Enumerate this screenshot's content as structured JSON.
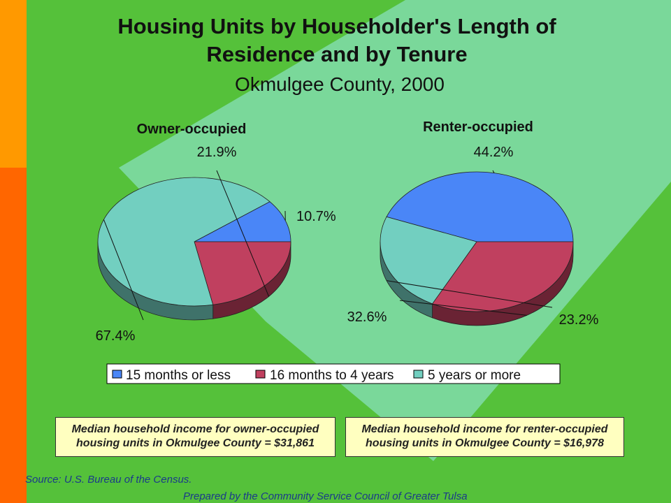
{
  "colors": {
    "background": "#55c13a",
    "diamond": "#7ad89a",
    "bar_top": "#ff9900",
    "bar_bottom": "#ff6600",
    "series_15_months_or_less": "#4a86f7",
    "series_16_months_to_4_years": "#c0405f",
    "series_5_years_or_more": "#72cfc0"
  },
  "chart_data": {
    "type": "pie",
    "title": "Housing Units by Householder's Length of Residence and by Tenure",
    "subtitle": "Okmulgee County, 2000",
    "legend": {
      "placement": "bottom-center",
      "entries": [
        "15 months or less",
        "16 months to 4 years",
        "5 years or more"
      ]
    },
    "charts": [
      {
        "name": "Owner-occupied",
        "slices": [
          {
            "label": "15 months or less",
            "value": 10.7,
            "display": "10.7%"
          },
          {
            "label": "16 months to 4 years",
            "value": 21.9,
            "display": "21.9%"
          },
          {
            "label": "5 years or more",
            "value": 67.4,
            "display": "67.4%"
          }
        ]
      },
      {
        "name": "Renter-occupied",
        "slices": [
          {
            "label": "15 months or less",
            "value": 44.2,
            "display": "44.2%"
          },
          {
            "label": "16 months to 4 years",
            "value": 32.6,
            "display": "32.6%"
          },
          {
            "label": "5 years or more",
            "value": 23.2,
            "display": "23.2%"
          }
        ]
      }
    ]
  },
  "notes": {
    "owner_line1": "Median household income for owner-occupied",
    "owner_line2": "housing units in Okmulgee County = $31,861",
    "renter_line1": "Median household income for renter-occupied",
    "renter_line2": "housing units in Okmulgee County = $16,978"
  },
  "footer": {
    "source": "Source:  U.S. Bureau of the Census.",
    "prepared_by": "Prepared by the Community Service Council of Greater Tulsa"
  }
}
